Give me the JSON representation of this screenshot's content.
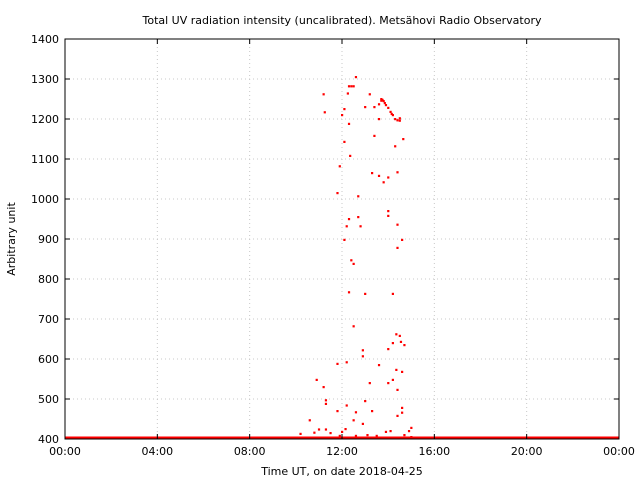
{
  "chart_data": {
    "type": "scatter",
    "title": "Total UV radiation intensity (uncalibrated). Metsähovi Radio Observatory",
    "xlabel": "Time UT, on date 2018-04-25",
    "ylabel": "Arbitrary unit",
    "x_unit": "hours UT",
    "xlim": [
      0,
      24
    ],
    "ylim": [
      400,
      1400
    ],
    "x_ticks": [
      0,
      4,
      8,
      12,
      16,
      20,
      24
    ],
    "x_tick_labels": [
      "00:00",
      "04:00",
      "08:00",
      "12:00",
      "16:00",
      "20:00",
      "00:00"
    ],
    "y_ticks": [
      400,
      500,
      600,
      700,
      800,
      900,
      1000,
      1100,
      1200,
      1300,
      1400
    ],
    "y_tick_labels": [
      "400",
      "500",
      "600",
      "700",
      "800",
      "900",
      "1000",
      "1100",
      "1200",
      "1300",
      "1400"
    ],
    "grid": true,
    "marker_color": "#ff0000",
    "baseline": {
      "y": 400,
      "x_range": [
        0,
        24
      ]
    },
    "points": [
      [
        10.2,
        413
      ],
      [
        10.6,
        447
      ],
      [
        10.8,
        416
      ],
      [
        10.9,
        548
      ],
      [
        11.0,
        424
      ],
      [
        11.2,
        530
      ],
      [
        11.2,
        1262
      ],
      [
        11.25,
        1217
      ],
      [
        11.3,
        497
      ],
      [
        11.3,
        488
      ],
      [
        11.3,
        424
      ],
      [
        11.5,
        415
      ],
      [
        11.7,
        403
      ],
      [
        11.8,
        588
      ],
      [
        11.8,
        470
      ],
      [
        11.8,
        1015
      ],
      [
        11.9,
        1082
      ],
      [
        11.9,
        408
      ],
      [
        12.0,
        1210
      ],
      [
        12.0,
        418
      ],
      [
        12.1,
        1225
      ],
      [
        12.1,
        898
      ],
      [
        12.1,
        1143
      ],
      [
        12.15,
        425
      ],
      [
        12.2,
        932
      ],
      [
        12.2,
        592
      ],
      [
        12.2,
        484
      ],
      [
        12.25,
        1264
      ],
      [
        12.3,
        1282
      ],
      [
        12.3,
        950
      ],
      [
        12.3,
        767
      ],
      [
        12.3,
        1188
      ],
      [
        12.35,
        1108
      ],
      [
        12.4,
        847
      ],
      [
        12.4,
        1282
      ],
      [
        12.5,
        1282
      ],
      [
        12.5,
        838
      ],
      [
        12.5,
        682
      ],
      [
        12.5,
        447
      ],
      [
        12.6,
        1305
      ],
      [
        12.6,
        408
      ],
      [
        12.6,
        467
      ],
      [
        12.7,
        1007
      ],
      [
        12.7,
        955
      ],
      [
        12.8,
        932
      ],
      [
        12.8,
        403
      ],
      [
        12.9,
        622
      ],
      [
        12.9,
        607
      ],
      [
        12.9,
        438
      ],
      [
        13.0,
        763
      ],
      [
        13.0,
        1230
      ],
      [
        13.0,
        495
      ],
      [
        13.1,
        410
      ],
      [
        13.2,
        1262
      ],
      [
        13.2,
        540
      ],
      [
        13.3,
        1065
      ],
      [
        13.3,
        470
      ],
      [
        13.4,
        1158
      ],
      [
        13.4,
        1230
      ],
      [
        13.5,
        408
      ],
      [
        13.6,
        1237
      ],
      [
        13.6,
        1200
      ],
      [
        13.6,
        1058
      ],
      [
        13.6,
        585
      ],
      [
        13.7,
        1250
      ],
      [
        13.7,
        1246
      ],
      [
        13.75,
        1248
      ],
      [
        13.8,
        1245
      ],
      [
        13.85,
        1240
      ],
      [
        13.9,
        1235
      ],
      [
        13.8,
        1042
      ],
      [
        13.9,
        418
      ],
      [
        14.0,
        1228
      ],
      [
        14.0,
        970
      ],
      [
        14.0,
        958
      ],
      [
        14.0,
        1054
      ],
      [
        14.0,
        625
      ],
      [
        14.0,
        540
      ],
      [
        14.0,
        403
      ],
      [
        14.1,
        1218
      ],
      [
        14.15,
        1213
      ],
      [
        14.2,
        1210
      ],
      [
        14.1,
        420
      ],
      [
        14.2,
        763
      ],
      [
        14.2,
        640
      ],
      [
        14.2,
        548
      ],
      [
        14.3,
        1132
      ],
      [
        14.3,
        1200
      ],
      [
        14.35,
        662
      ],
      [
        14.35,
        573
      ],
      [
        14.4,
        1197
      ],
      [
        14.4,
        1067
      ],
      [
        14.4,
        936
      ],
      [
        14.4,
        878
      ],
      [
        14.4,
        523
      ],
      [
        14.4,
        458
      ],
      [
        14.5,
        1202
      ],
      [
        14.5,
        1196
      ],
      [
        14.5,
        658
      ],
      [
        14.55,
        643
      ],
      [
        14.6,
        898
      ],
      [
        14.6,
        568
      ],
      [
        14.6,
        466
      ],
      [
        14.6,
        478
      ],
      [
        14.65,
        1150
      ],
      [
        14.7,
        635
      ],
      [
        14.7,
        410
      ],
      [
        14.9,
        420
      ],
      [
        15.0,
        428
      ],
      [
        15.0,
        405
      ]
    ]
  }
}
